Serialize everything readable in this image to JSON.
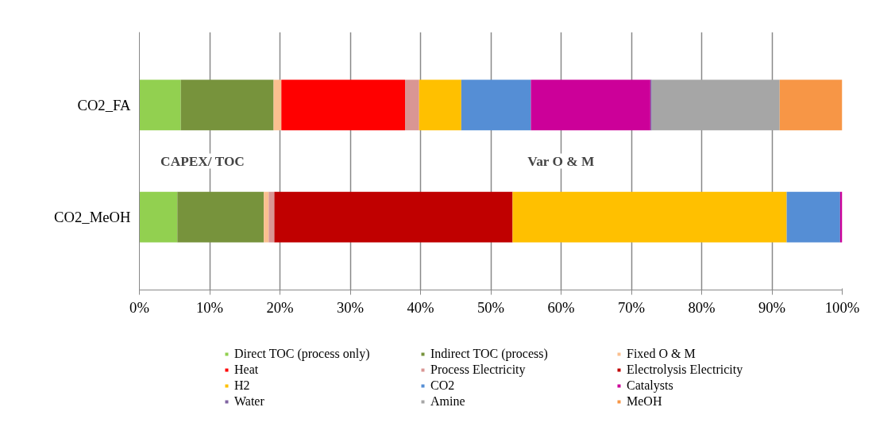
{
  "chart_data": {
    "type": "bar",
    "orientation": "horizontal",
    "stacked": true,
    "categories": [
      "CO2_FA",
      "CO2_MeOH"
    ],
    "series": [
      {
        "name": "Direct TOC (process only)",
        "color": "#92d050",
        "values": [
          5.9,
          5.4
        ]
      },
      {
        "name": "Indirect TOC (process)",
        "color": "#77933c",
        "values": [
          13.2,
          12.3
        ]
      },
      {
        "name": "Fixed O & M",
        "color": "#fac090",
        "values": [
          1.1,
          0.7
        ]
      },
      {
        "name": "Heat",
        "color": "#ff0000",
        "values": [
          17.6,
          0
        ]
      },
      {
        "name": "Process Electricity",
        "color": "#d99694",
        "values": [
          2.0,
          0.8
        ]
      },
      {
        "name": "Electrolysis Electricity",
        "color": "#c00000",
        "values": [
          0,
          33.9
        ]
      },
      {
        "name": "H2",
        "color": "#ffc000",
        "values": [
          6.0,
          39.0
        ]
      },
      {
        "name": "CO2",
        "color": "#558ed5",
        "values": [
          9.9,
          7.6
        ]
      },
      {
        "name": "Catalysts",
        "color": "#cc0099",
        "values": [
          17.0,
          0.3
        ]
      },
      {
        "name": "Water",
        "color": "#8064a2",
        "values": [
          0.2,
          0
        ]
      },
      {
        "name": "Amine",
        "color": "#a6a6a6",
        "values": [
          18.2,
          0
        ]
      },
      {
        "name": "MeOH",
        "color": "#f79646",
        "values": [
          8.9,
          0
        ]
      }
    ],
    "xlim": [
      0,
      100
    ],
    "xticks": [
      {
        "value": 0,
        "label": "0%"
      },
      {
        "value": 10,
        "label": "10%"
      },
      {
        "value": 20,
        "label": "20%"
      },
      {
        "value": 30,
        "label": "30%"
      },
      {
        "value": 40,
        "label": "40%"
      },
      {
        "value": 50,
        "label": "50%"
      },
      {
        "value": 60,
        "label": "60%"
      },
      {
        "value": 70,
        "label": "70%"
      },
      {
        "value": 80,
        "label": "80%"
      },
      {
        "value": 90,
        "label": "90%"
      },
      {
        "value": 100,
        "label": "100%"
      }
    ],
    "grid": "x",
    "legend": "bottom",
    "annotations": [
      "CAPEX/ TOC",
      "Var O & M"
    ]
  }
}
